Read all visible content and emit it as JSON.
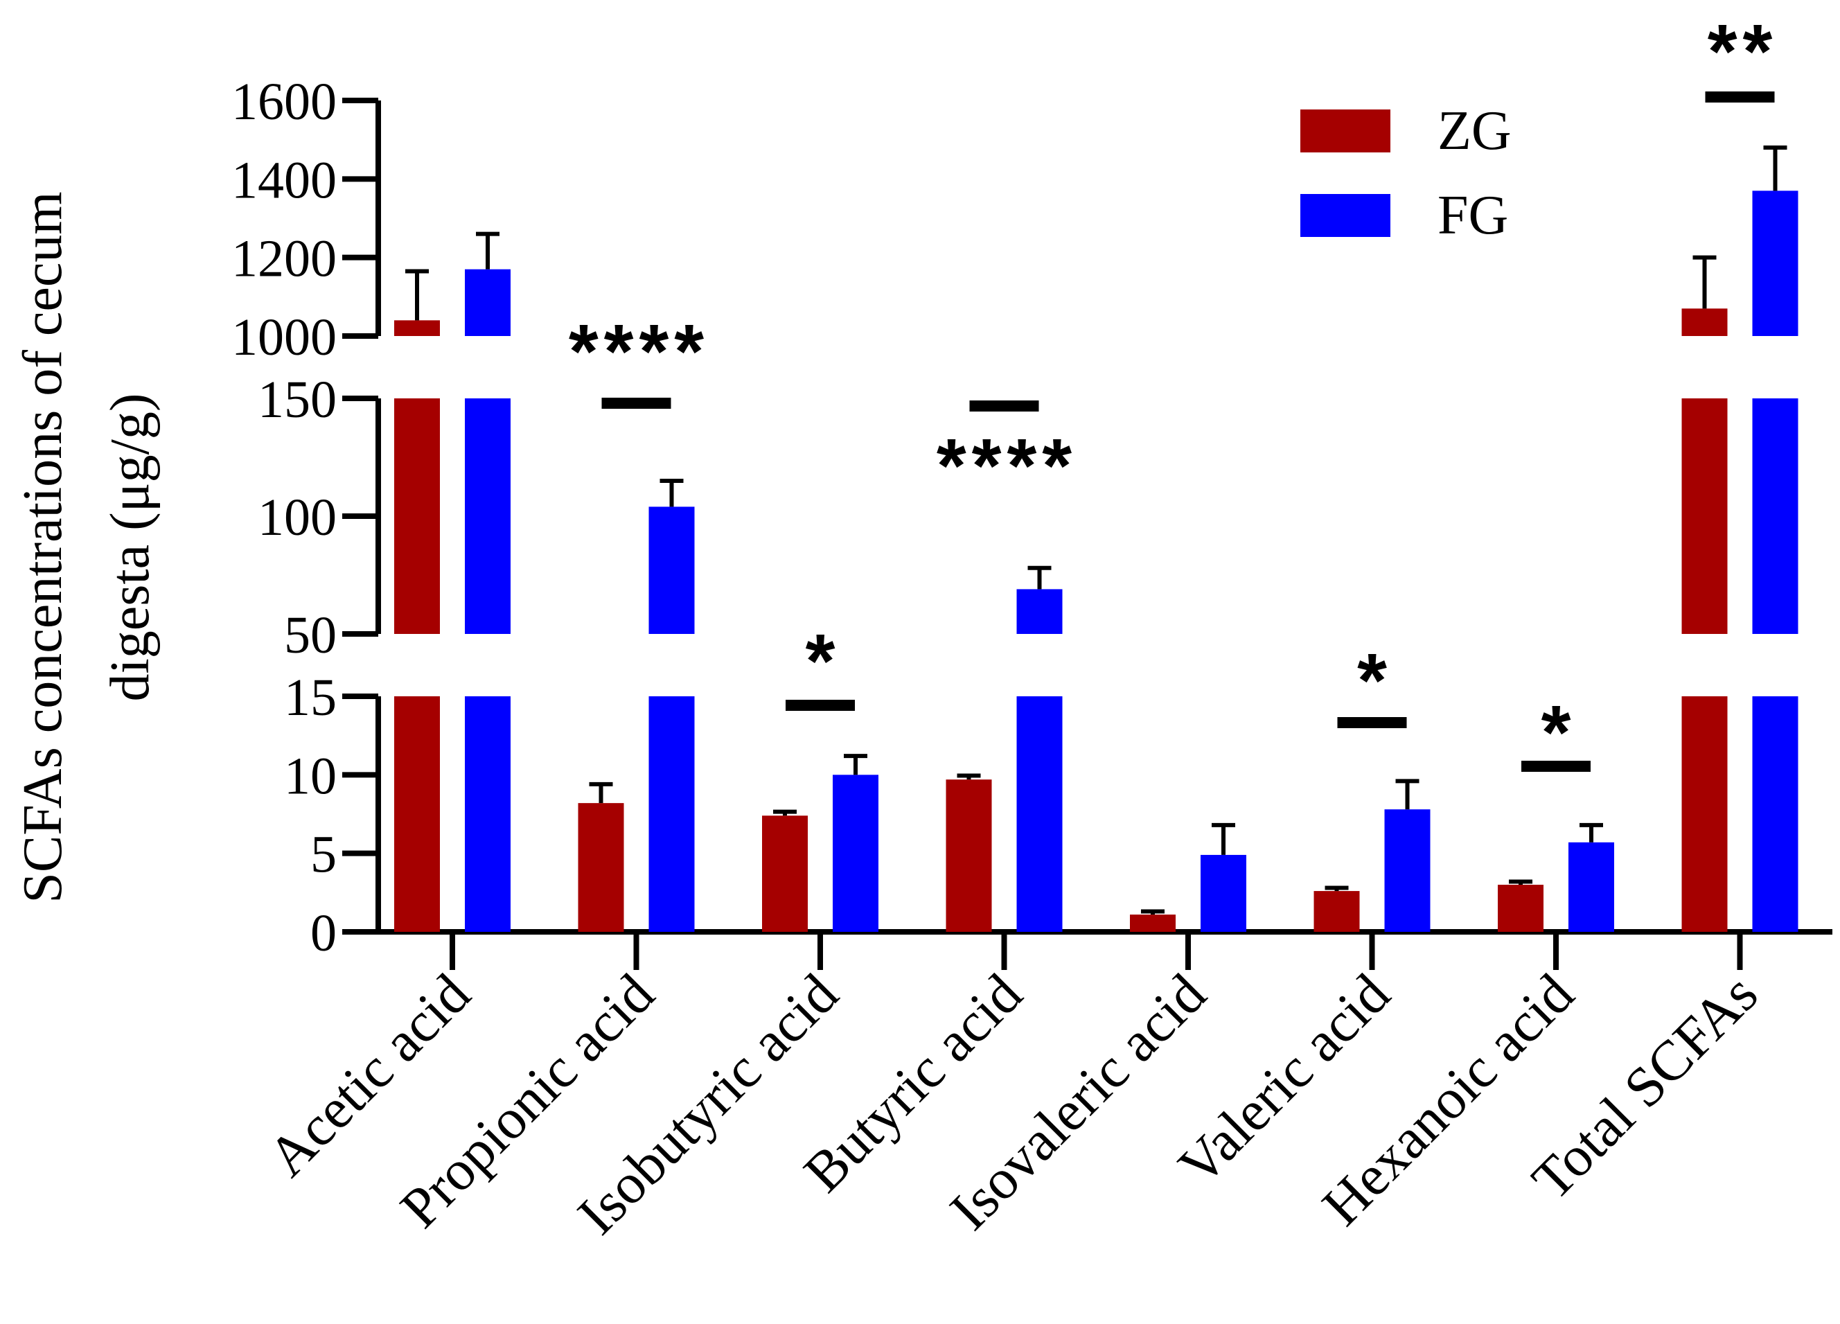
{
  "chart_data": {
    "type": "bar",
    "ylabel_lines": [
      "SCFAs concentrations of cecum",
      "digesta (μg/g)"
    ],
    "categories": [
      "Acetic acid",
      "Propionic acid",
      "Isobutyric acid",
      "Butyric acid",
      "Isovaleric acid",
      "Valeric acid",
      "Hexanoic acid",
      "Total SCFAs"
    ],
    "series": [
      {
        "name": "ZG",
        "color": "#a50000",
        "values": [
          1040,
          8.2,
          7.4,
          9.7,
          1.1,
          2.6,
          3.0,
          1070
        ],
        "errors": [
          125,
          1.2,
          0.25,
          0.25,
          0.2,
          0.2,
          0.2,
          130
        ]
      },
      {
        "name": "FG",
        "color": "#0000ff",
        "values": [
          1170,
          104,
          10.0,
          69,
          4.9,
          7.8,
          5.7,
          1370
        ],
        "errors": [
          90,
          11,
          1.2,
          9,
          1.9,
          1.8,
          1.1,
          110
        ]
      }
    ],
    "y_segments": [
      {
        "range": [
          0,
          15
        ],
        "ticks": [
          "0",
          "5",
          "10",
          "15"
        ]
      },
      {
        "range": [
          50,
          150
        ],
        "ticks": [
          "50",
          "100",
          "150"
        ]
      },
      {
        "range": [
          1000,
          1600
        ],
        "ticks": [
          "1000",
          "1200",
          "1400",
          "1600"
        ]
      }
    ],
    "significance": [
      {
        "category": "Propionic acid",
        "label": "****"
      },
      {
        "category": "Isobutyric acid",
        "label": "*"
      },
      {
        "category": "Butyric acid",
        "label": "****"
      },
      {
        "category": "Valeric acid",
        "label": "*"
      },
      {
        "category": "Hexanoic acid",
        "label": "*"
      },
      {
        "category": "Total SCFAs",
        "label": "**"
      }
    ],
    "legend": {
      "position": "top-right",
      "entries": [
        "ZG",
        "FG"
      ]
    }
  }
}
